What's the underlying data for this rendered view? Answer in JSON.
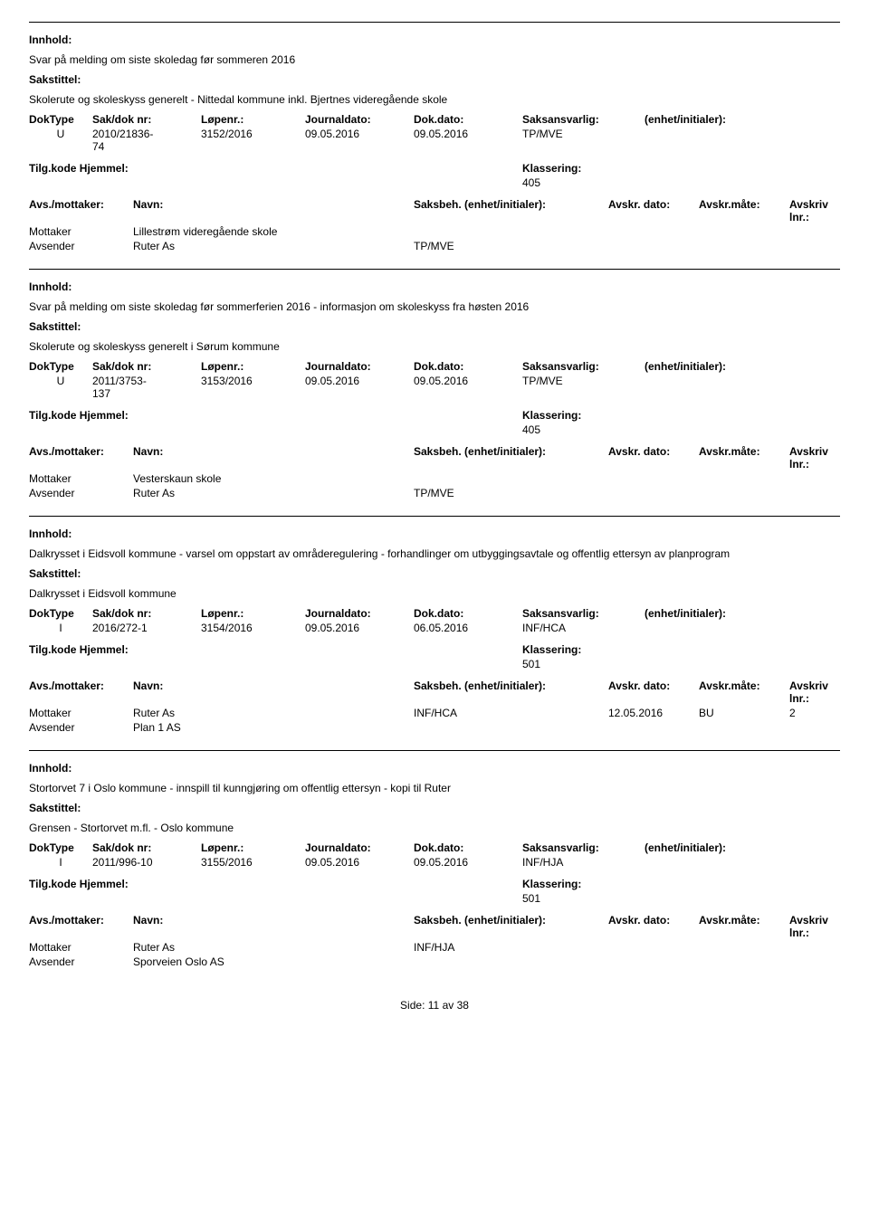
{
  "labels": {
    "innhold": "Innhold:",
    "sakstittel": "Sakstittel:",
    "doktype": "DokType",
    "sakdok": "Sak/dok nr:",
    "lopenr": "Løpenr.:",
    "journaldato": "Journaldato:",
    "dokdato": "Dok.dato:",
    "saksansvarlig": "Saksansvarlig:",
    "enhet": "(enhet/initialer):",
    "tilgkode": "Tilg.kode",
    "hjemmel": "Hjemmel:",
    "klassering": "Klassering:",
    "avsmottaker": "Avs./mottaker:",
    "navn": "Navn:",
    "saksbeh": "Saksbeh.",
    "enhetini": "(enhet/initialer):",
    "avskrdato": "Avskr. dato:",
    "avskrmate": "Avskr.måte:",
    "avskrivlnr": "Avskriv lnr.:",
    "mottaker": "Mottaker",
    "avsender": "Avsender"
  },
  "records": [
    {
      "innhold": "Svar på melding om siste skoledag før sommeren 2016",
      "sakstittel": "Skolerute og skoleskyss generelt - Nittedal kommune inkl. Bjertnes videregående skole",
      "doktype": "U",
      "sakdok": "2010/21836-74",
      "lopenr": "3152/2016",
      "journaldato": "09.05.2016",
      "dokdato": "09.05.2016",
      "saksansvarlig": "TP/MVE",
      "klassering": "405",
      "parties": [
        {
          "role": "Mottaker",
          "navn": "Lillestrøm videregående skole",
          "saksbeh": "",
          "avskrdato": "",
          "avskrmate": "",
          "avskrivlnr": ""
        },
        {
          "role": "Avsender",
          "navn": "Ruter As",
          "saksbeh": "TP/MVE",
          "avskrdato": "",
          "avskrmate": "",
          "avskrivlnr": ""
        }
      ]
    },
    {
      "innhold": "Svar på melding om siste skoledag før sommerferien 2016 - informasjon om skoleskyss fra høsten 2016",
      "sakstittel": "Skolerute og skoleskyss generelt i Sørum kommune",
      "doktype": "U",
      "sakdok": "2011/3753-137",
      "lopenr": "3153/2016",
      "journaldato": "09.05.2016",
      "dokdato": "09.05.2016",
      "saksansvarlig": "TP/MVE",
      "klassering": "405",
      "parties": [
        {
          "role": "Mottaker",
          "navn": "Vesterskaun skole",
          "saksbeh": "",
          "avskrdato": "",
          "avskrmate": "",
          "avskrivlnr": ""
        },
        {
          "role": "Avsender",
          "navn": "Ruter As",
          "saksbeh": "TP/MVE",
          "avskrdato": "",
          "avskrmate": "",
          "avskrivlnr": ""
        }
      ]
    },
    {
      "innhold": "Dalkrysset i Eidsvoll kommune - varsel om oppstart av områderegulering - forhandlinger om utbyggingsavtale og offentlig ettersyn av planprogram",
      "sakstittel": "Dalkrysset i Eidsvoll kommune",
      "doktype": "I",
      "sakdok": "2016/272-1",
      "lopenr": "3154/2016",
      "journaldato": "09.05.2016",
      "dokdato": "06.05.2016",
      "saksansvarlig": "INF/HCA",
      "klassering": "501",
      "parties": [
        {
          "role": "Mottaker",
          "navn": "Ruter As",
          "saksbeh": "INF/HCA",
          "avskrdato": "12.05.2016",
          "avskrmate": "BU",
          "avskrivlnr": "2"
        },
        {
          "role": "Avsender",
          "navn": "Plan 1 AS",
          "saksbeh": "",
          "avskrdato": "",
          "avskrmate": "",
          "avskrivlnr": ""
        }
      ]
    },
    {
      "innhold": "Stortorvet 7 i Oslo kommune -  innspill til kunngjøring om offentlig ettersyn - kopi til Ruter",
      "sakstittel": "Grensen - Stortorvet m.fl. - Oslo kommune",
      "doktype": "I",
      "sakdok": "2011/996-10",
      "lopenr": "3155/2016",
      "journaldato": "09.05.2016",
      "dokdato": "09.05.2016",
      "saksansvarlig": "INF/HJA",
      "klassering": "501",
      "parties": [
        {
          "role": "Mottaker",
          "navn": "Ruter As",
          "saksbeh": "INF/HJA",
          "avskrdato": "",
          "avskrmate": "",
          "avskrivlnr": ""
        },
        {
          "role": "Avsender",
          "navn": "Sporveien Oslo AS",
          "saksbeh": "",
          "avskrdato": "",
          "avskrmate": "",
          "avskrivlnr": ""
        }
      ]
    }
  ],
  "footer": {
    "side": "Side:",
    "page": "11",
    "av": "av",
    "total": "38"
  }
}
